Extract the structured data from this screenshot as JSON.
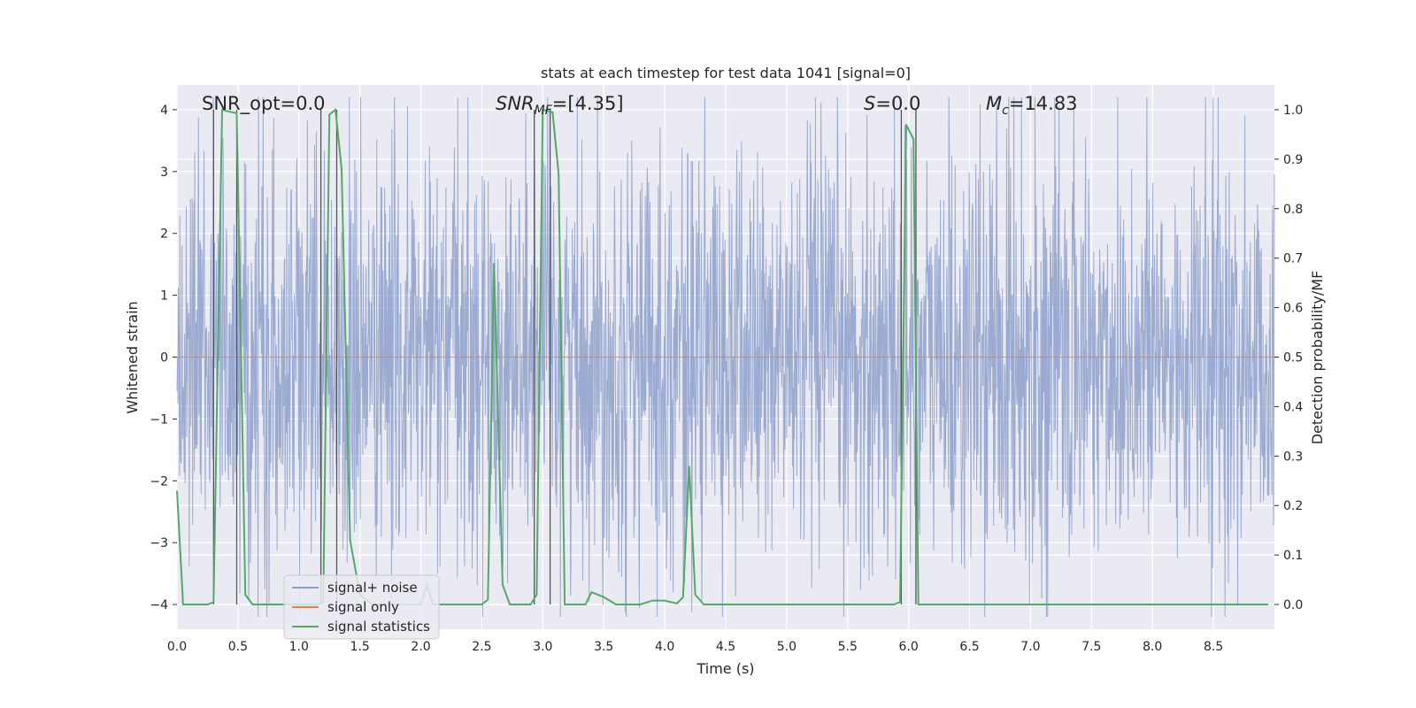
{
  "chart_data": {
    "type": "line",
    "title": "stats at each timestep for test data 1041 [signal=0]",
    "xlabel": "Time (s)",
    "ylabel": "Whitened strain",
    "y2label": "Detection probability/MF",
    "xlim": [
      0.0,
      9.0
    ],
    "ylim": [
      -4.4,
      4.4
    ],
    "y2lim": [
      -0.05,
      1.05
    ],
    "xticks": [
      0.0,
      0.5,
      1.0,
      1.5,
      2.0,
      2.5,
      3.0,
      3.5,
      4.0,
      4.5,
      5.0,
      5.5,
      6.0,
      6.5,
      7.0,
      7.5,
      8.0,
      8.5
    ],
    "xtick_labels": [
      "0.0",
      "0.5",
      "1.0",
      "1.5",
      "2.0",
      "2.5",
      "3.0",
      "3.5",
      "4.0",
      "4.5",
      "5.0",
      "5.5",
      "6.0",
      "6.5",
      "7.0",
      "7.5",
      "8.0",
      "8.5"
    ],
    "yticks": [
      4,
      3,
      2,
      1,
      0,
      -1,
      -2,
      -3,
      -4
    ],
    "ytick_labels": [
      "4",
      "3",
      "2",
      "1",
      "0",
      "−1",
      "−2",
      "−3",
      "−4"
    ],
    "y2ticks": [
      1.0,
      0.9,
      0.8,
      0.7,
      0.6,
      0.5,
      0.4,
      0.3,
      0.2,
      0.1,
      0.0
    ],
    "y2tick_labels": [
      "1.0",
      "0.9",
      "0.8",
      "0.7",
      "0.6",
      "0.5",
      "0.4",
      "0.3",
      "0.2",
      "0.1",
      "0.0"
    ],
    "grid": true,
    "legend_position": "lower-left",
    "annotations": {
      "snr_opt": "SNR_opt=0.0",
      "snr_mf_main": "SNR",
      "snr_mf_sub": "MF",
      "snr_mf_value": "=[4.35]",
      "s_main": "S",
      "s_value": "=0.0",
      "mc_main": "M",
      "mc_sub": "c",
      "mc_value": "=14.83"
    },
    "vertical_markers_x": [
      0.3,
      0.49,
      1.18,
      1.31,
      2.93,
      3.06,
      5.94,
      6.06
    ],
    "noise_amplitude_approx": 2.0,
    "series": [
      {
        "name": "signal+ noise",
        "color": "#8c9fcb",
        "axis": "left",
        "style": "dense-noise"
      },
      {
        "name": "signal only",
        "color": "#dd8452",
        "axis": "left",
        "x": [
          0.0,
          9.0
        ],
        "y": [
          0.0,
          0.0
        ]
      },
      {
        "name": "signal statistics",
        "color": "#55a868",
        "axis": "right",
        "x": [
          0.0,
          0.05,
          0.1,
          0.2,
          0.25,
          0.3,
          0.37,
          0.43,
          0.49,
          0.56,
          0.62,
          0.7,
          0.8,
          0.9,
          1.0,
          1.1,
          1.15,
          1.2,
          1.25,
          1.3,
          1.35,
          1.42,
          1.5,
          1.6,
          1.8,
          2.0,
          2.05,
          2.1,
          2.2,
          2.3,
          2.4,
          2.5,
          2.55,
          2.6,
          2.67,
          2.73,
          2.8,
          2.9,
          2.95,
          3.0,
          3.08,
          3.13,
          3.18,
          3.25,
          3.35,
          3.4,
          3.5,
          3.6,
          3.7,
          3.8,
          3.9,
          4.0,
          4.05,
          4.1,
          4.15,
          4.2,
          4.25,
          4.32,
          4.37,
          4.5,
          5.0,
          5.5,
          5.88,
          5.93,
          5.98,
          6.04,
          6.08,
          6.15,
          6.5,
          7.0,
          7.5,
          8.0,
          8.5,
          8.95
        ],
        "y": [
          0.23,
          0.0,
          0.0,
          0.0,
          0.0,
          0.005,
          1.0,
          0.996,
          0.993,
          0.02,
          0.0,
          0.0,
          0.0,
          0.0,
          0.0,
          0.0,
          0.0,
          0.005,
          0.99,
          1.0,
          0.88,
          0.13,
          0.02,
          0.0,
          0.0,
          0.0,
          0.04,
          0.0,
          0.0,
          0.0,
          0.0,
          0.0,
          0.01,
          0.69,
          0.04,
          0.0,
          0.0,
          0.0,
          0.02,
          1.0,
          0.995,
          0.87,
          0.0,
          0.0,
          0.0,
          0.025,
          0.015,
          0.0,
          0.0,
          0.0,
          0.008,
          0.008,
          0.005,
          0.002,
          0.015,
          0.28,
          0.02,
          0.0,
          0.0,
          0.0,
          0.0,
          0.0,
          0.0,
          0.005,
          0.97,
          0.94,
          0.0,
          0.0,
          0.0,
          0.0,
          0.0,
          0.0,
          0.0,
          0.0
        ]
      }
    ]
  }
}
